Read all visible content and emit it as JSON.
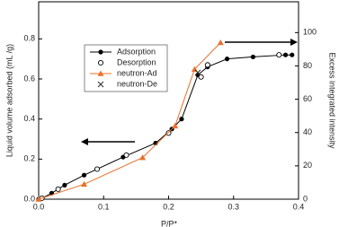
{
  "chart_data": {
    "type": "line",
    "xlabel": "P/P*",
    "ylabel": "Liquid volume adsorbed (mL /g)",
    "y2label": "Excess integrated intensity",
    "xlim": [
      0,
      0.4
    ],
    "xticks": [
      {
        "value": 0,
        "label": "0.0"
      },
      0.1,
      0.2,
      0.3,
      0.4
    ],
    "ylim": [
      0,
      0.985
    ],
    "yticks": [
      {
        "value": 0,
        "label": "0.0"
      },
      0.2,
      0.4,
      0.6,
      0.8
    ],
    "y2lim": [
      0,
      118.5
    ],
    "y2ticks": [
      0,
      20,
      40,
      60,
      80,
      100
    ],
    "series": [
      {
        "name": "Adsorption",
        "color": "#000000",
        "marker": "filled-circle",
        "line": true,
        "x": [
          0.0,
          0.005,
          0.02,
          0.04,
          0.07,
          0.13,
          0.18,
          0.205,
          0.22,
          0.245,
          0.26,
          0.29,
          0.33,
          0.38,
          0.39
        ],
        "values": [
          0.0,
          0.005,
          0.03,
          0.07,
          0.12,
          0.21,
          0.28,
          0.35,
          0.4,
          0.62,
          0.66,
          0.7,
          0.71,
          0.72,
          0.72
        ]
      },
      {
        "name": "Desorption",
        "color": "#000000",
        "marker": "open-circle",
        "line": false,
        "x": [
          0.005,
          0.03,
          0.09,
          0.135,
          0.2,
          0.25,
          0.26,
          0.37
        ],
        "values": [
          0.005,
          0.05,
          0.15,
          0.22,
          0.33,
          0.61,
          0.67,
          0.72
        ]
      },
      {
        "name": "neutron-Ad",
        "color": "#e8702a",
        "marker": "triangle",
        "line": true,
        "axis": "y2",
        "x": [
          0.0,
          0.07,
          0.16,
          0.21,
          0.24,
          0.28
        ],
        "values": [
          0,
          9,
          25,
          44,
          78,
          94
        ]
      },
      {
        "name": "neutron-De",
        "color": "#333333",
        "marker": "cross",
        "line": false,
        "axis": "y2",
        "x": [
          0.245
        ],
        "values": [
          76
        ]
      }
    ]
  }
}
